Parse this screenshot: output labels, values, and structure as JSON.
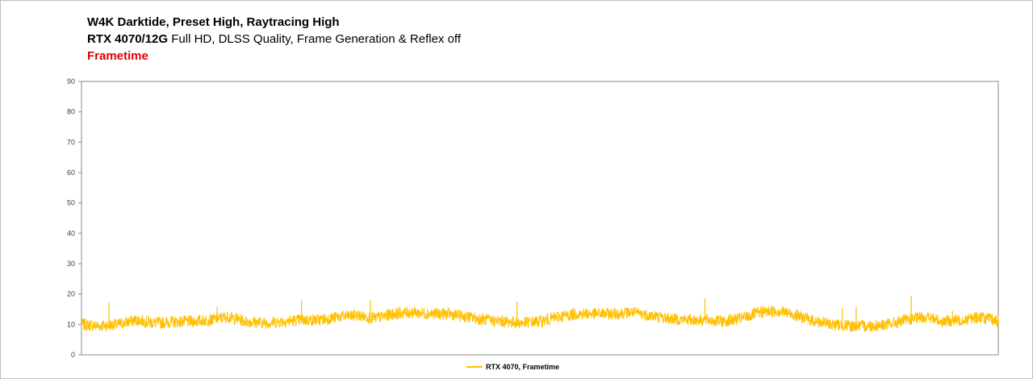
{
  "chart_data": {
    "type": "line",
    "title": "W4K Darktide, Preset High, Raytracing High",
    "subtitle_bold": "RTX 4070/12G",
    "subtitle_rest": "Full HD, DLSS Quality, Frame Generation & Reflex off",
    "metric_label": "Frametime",
    "ylim": [
      0,
      90
    ],
    "y_ticks": [
      "0",
      "10",
      "20",
      "30",
      "40",
      "50",
      "60",
      "70",
      "80",
      "90"
    ],
    "x_tick_labels": [],
    "grid": false,
    "legend_position": "bottom-center",
    "series": [
      {
        "name": "RTX 4070, Frametime",
        "color": "#ffc000",
        "x": [
          0,
          2,
          4,
          6,
          8,
          10,
          12,
          14,
          16,
          18,
          20,
          22,
          24,
          26,
          28,
          30,
          32,
          34,
          36,
          38,
          40,
          42,
          44,
          46,
          48,
          50,
          52,
          54,
          56,
          58,
          60,
          62,
          64,
          66,
          68,
          70,
          72,
          74,
          76,
          78,
          80,
          82,
          84,
          86,
          88,
          90,
          92,
          94,
          96,
          98,
          100
        ],
        "values": [
          10.0,
          9.5,
          10.0,
          11.5,
          10.5,
          10.8,
          11.0,
          11.5,
          12.5,
          11.0,
          10.5,
          11.0,
          11.5,
          11.5,
          12.5,
          13.0,
          12.0,
          13.5,
          14.0,
          13.5,
          13.5,
          12.5,
          11.5,
          11.0,
          10.5,
          11.0,
          12.5,
          13.5,
          13.5,
          13.5,
          14.0,
          13.0,
          12.0,
          11.5,
          11.5,
          11.0,
          12.0,
          14.0,
          14.5,
          13.0,
          11.0,
          10.0,
          9.5,
          9.5,
          10.0,
          11.5,
          12.5,
          11.0,
          11.5,
          12.5,
          11.0
        ]
      }
    ],
    "spikes": [
      {
        "x": 3.0,
        "value": 17.2
      },
      {
        "x": 14.8,
        "value": 15.8
      },
      {
        "x": 24.0,
        "value": 17.8
      },
      {
        "x": 31.5,
        "value": 18.0
      },
      {
        "x": 47.5,
        "value": 17.5
      },
      {
        "x": 68.0,
        "value": 18.5
      },
      {
        "x": 83.0,
        "value": 15.5
      },
      {
        "x": 84.5,
        "value": 15.8
      },
      {
        "x": 90.5,
        "value": 19.5
      },
      {
        "x": 95.0,
        "value": 14.5
      }
    ],
    "noise": {
      "amplitude": 2.0,
      "samples": 3000,
      "seed": 7
    }
  }
}
